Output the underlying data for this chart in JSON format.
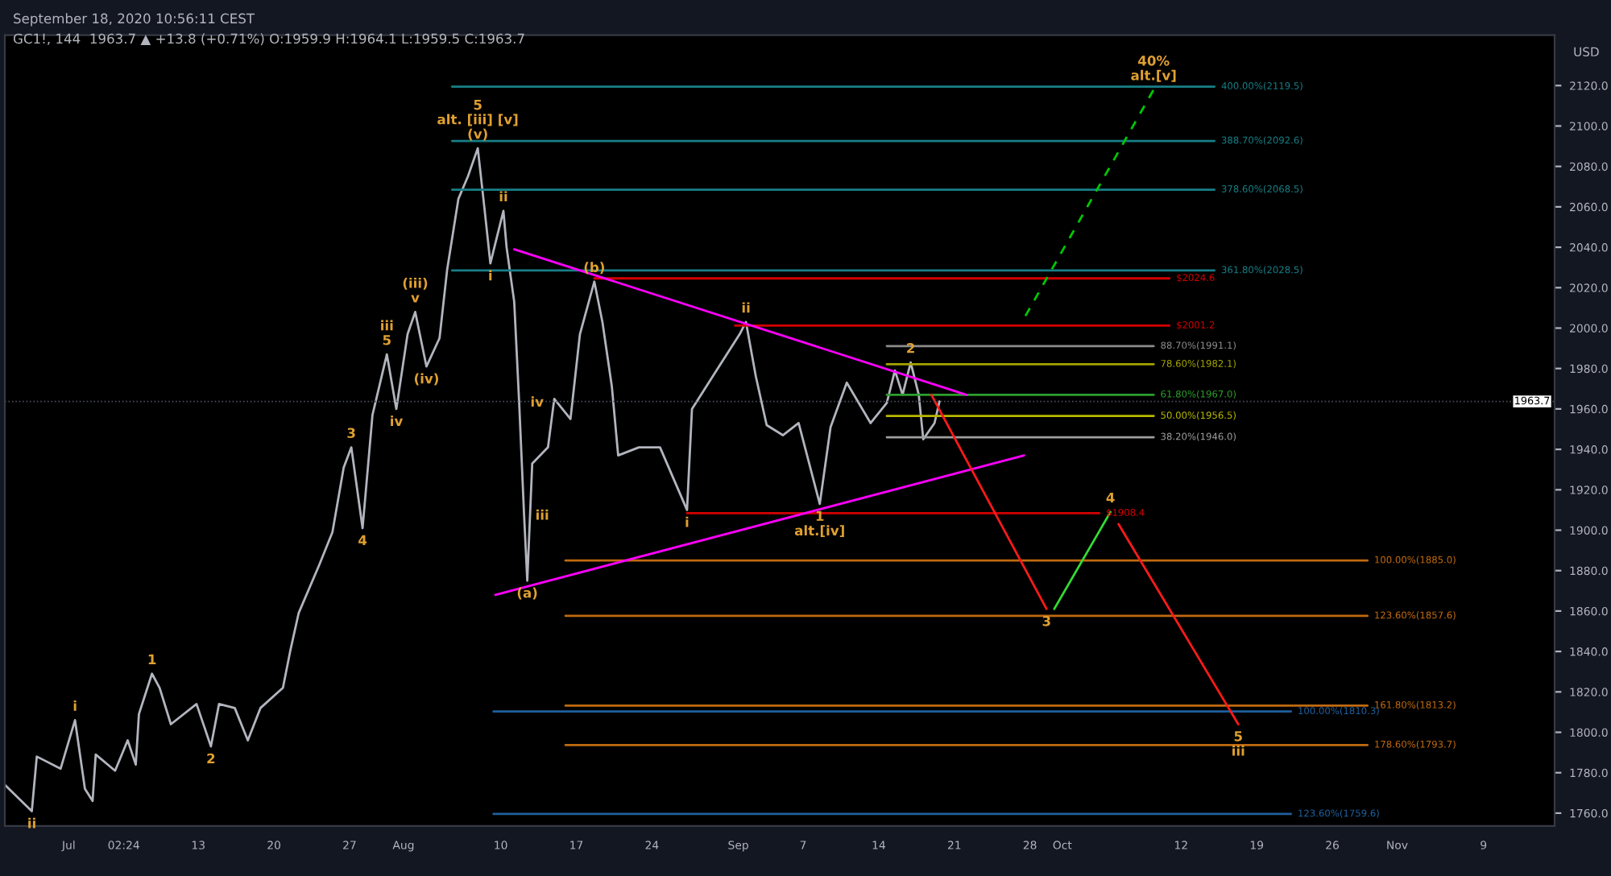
{
  "chart_data": {
    "type": "line",
    "title": "September 18, 2020 10:56:11 CEST",
    "subtitle": "GC1!, 144  1963.7 ▲ +13.8 (+0.71%) O:1959.9 H:1964.1 L:1959.5 C:1963.7",
    "ylabel": "USD",
    "xlim": [
      "2020-06-25T02:00",
      "2020-11-15T14:00"
    ],
    "xticks": [
      {
        "value": "2020-07-01",
        "label": "Jul"
      },
      {
        "value": "2020-07-06T02:24",
        "label": "02:24"
      },
      {
        "value": "2020-07-13",
        "label": "13"
      },
      {
        "value": "2020-07-20",
        "label": "20"
      },
      {
        "value": "2020-07-27",
        "label": "27"
      },
      {
        "value": "2020-08-01",
        "label": "Aug"
      },
      {
        "value": "2020-08-10",
        "label": "10"
      },
      {
        "value": "2020-08-17",
        "label": "17"
      },
      {
        "value": "2020-08-24",
        "label": "24"
      },
      {
        "value": "2020-09-01",
        "label": "Sep"
      },
      {
        "value": "2020-09-07",
        "label": "7"
      },
      {
        "value": "2020-09-14",
        "label": "14"
      },
      {
        "value": "2020-09-21",
        "label": "21"
      },
      {
        "value": "2020-09-28",
        "label": "28"
      },
      {
        "value": "2020-10-01",
        "label": "Oct"
      },
      {
        "value": "2020-10-12",
        "label": "12"
      },
      {
        "value": "2020-10-19",
        "label": "19"
      },
      {
        "value": "2020-10-26",
        "label": "26"
      },
      {
        "value": "2020-11-01",
        "label": "Nov"
      },
      {
        "value": "2020-11-09",
        "label": "9"
      }
    ],
    "ylim": [
      1753.6,
      2145
    ],
    "yticks": [
      {
        "value": 1760,
        "label": "1760.0"
      },
      {
        "value": 1780,
        "label": "1780.0"
      },
      {
        "value": 1800,
        "label": "1800.0"
      },
      {
        "value": 1820,
        "label": "1820.0"
      },
      {
        "value": 1840,
        "label": "1840.0"
      },
      {
        "value": 1860,
        "label": "1860.0"
      },
      {
        "value": 1880,
        "label": "1880.0"
      },
      {
        "value": 1900,
        "label": "1900.0"
      },
      {
        "value": 1920,
        "label": "1920.0"
      },
      {
        "value": 1940,
        "label": "1940.0"
      },
      {
        "value": 1960,
        "label": "1960.0"
      },
      {
        "value": 1980,
        "label": "1980.0"
      },
      {
        "value": 2000,
        "label": "2000.0"
      },
      {
        "value": 2020,
        "label": "2020.0"
      },
      {
        "value": 2040,
        "label": "2040.0"
      },
      {
        "value": 2060,
        "label": "2060.0"
      },
      {
        "value": 2080,
        "label": "2080.0"
      },
      {
        "value": 2100,
        "label": "2100.0"
      },
      {
        "value": 2120,
        "label": "2120.0"
      }
    ],
    "ref_lines": [
      {
        "axis": "y",
        "value": 1963.7,
        "label": "1963.7",
        "color": "#4a4e5a"
      }
    ],
    "series": [
      {
        "color": "#b2b5be",
        "x": [
          "2020-06-25T02:00",
          "2020-06-27T14:00",
          "2020-06-28T01:00",
          "2020-06-30T06:00",
          "2020-07-01T14:00",
          "2020-07-02T12:00",
          "2020-07-03T05:00",
          "2020-07-03T12:00",
          "2020-07-05T07:00",
          "2020-07-06T11:00",
          "2020-07-07T05:00",
          "2020-07-07T12:00",
          "2020-07-08T17:00",
          "2020-07-09T10:00",
          "2020-07-10T11:00",
          "2020-07-12T20:00",
          "2020-07-14T04:00",
          "2020-07-14T22:00",
          "2020-07-16T09:00",
          "2020-07-17T14:00",
          "2020-07-18T18:00",
          "2020-07-20T20:00",
          "2020-07-21T13:00",
          "2020-07-22T07:00",
          "2020-07-24T05:00",
          "2020-07-25T10:00",
          "2020-07-26T11:00",
          "2020-07-27T04:00",
          "2020-07-28T05:00",
          "2020-07-29T03:00",
          "2020-07-30T11:00",
          "2020-07-31T08:00",
          "2020-08-01T09:00",
          "2020-08-02T02:00",
          "2020-08-03T03:00",
          "2020-08-04T08:00",
          "2020-08-05T01:00",
          "2020-08-06T02:00",
          "2020-08-06T23:00",
          "2020-08-07T21:00",
          "2020-08-08T11:00",
          "2020-08-09T01:00",
          "2020-08-10T06:00",
          "2020-08-10T13:00",
          "2020-08-11T06:00",
          "2020-08-11T17:00",
          "2020-08-12T04:00",
          "2020-08-12T11:00",
          "2020-08-12T22:00",
          "2020-08-14T09:00",
          "2020-08-14T23:00",
          "2020-08-16T11:00",
          "2020-08-17T08:00",
          "2020-08-18T16:00",
          "2020-08-19T10:00",
          "2020-08-20T07:00",
          "2020-08-20T21:00",
          "2020-08-22T19:00",
          "2020-08-24T18:00",
          "2020-08-27T06:00",
          "2020-08-27T17:00",
          "2020-08-30T05:00",
          "2020-09-01T03:00",
          "2020-09-01T17:00",
          "2020-09-02T15:00",
          "2020-09-03T15:00",
          "2020-09-05T03:00",
          "2020-09-06T14:00",
          "2020-09-08T13:00",
          "2020-09-09T13:00",
          "2020-09-11T01:00",
          "2020-09-13T06:00",
          "2020-09-14T18:00",
          "2020-09-15T12:00",
          "2020-09-16T05:00",
          "2020-09-16T23:00",
          "2020-09-17T17:00",
          "2020-09-18T03:00",
          "2020-09-19T04:00",
          "2020-09-19T15:00"
        ],
        "values": [
          1774,
          1761,
          1788,
          1782,
          1806,
          1772,
          1766,
          1789,
          1781,
          1796,
          1784,
          1809,
          1829,
          1822,
          1804,
          1814,
          1793,
          1814,
          1812,
          1796,
          1812,
          1822,
          1841,
          1859,
          1883,
          1899,
          1931,
          1941,
          1901,
          1957,
          1987,
          1960,
          1997,
          2008,
          1981,
          1995,
          2029,
          2064,
          2075,
          2089,
          2061,
          2032,
          2058,
          2040,
          2013,
          1963,
          1907,
          1875,
          1933,
          1941,
          1965,
          1955,
          1997,
          2023,
          2003,
          1971,
          1937,
          1941,
          1941,
          1910,
          1960,
          1981,
          1997,
          2003,
          1976,
          1952,
          1947,
          1953,
          1913,
          1951,
          1973,
          1953,
          1963,
          1979,
          1967,
          1983,
          1967,
          1945,
          1953,
          1963.7
        ]
      },
      {
        "name": "400.00%(2119.5)",
        "color": "#177f86",
        "x": [
          "2020-08-05T12:00",
          "2020-10-15T02:00"
        ],
        "values": [
          2119.5,
          2119.5
        ]
      },
      {
        "name": "388.70%(2092.6)",
        "color": "#177f86",
        "x": [
          "2020-08-05T12:00",
          "2020-10-15T02:00"
        ],
        "values": [
          2092.6,
          2092.6
        ]
      },
      {
        "name": "378.60%(2068.5)",
        "color": "#177f86",
        "x": [
          "2020-08-05T12:00",
          "2020-10-15T02:00"
        ],
        "values": [
          2068.5,
          2068.5
        ]
      },
      {
        "name": "361.80%(2028.5)",
        "color": "#177f86",
        "x": [
          "2020-08-05T12:00",
          "2020-10-15T02:00"
        ],
        "values": [
          2028.5,
          2028.5
        ]
      },
      {
        "name": "$2024.6",
        "color": "#d50000",
        "x": [
          "2020-08-18T16:00",
          "2020-10-10T22:00"
        ],
        "values": [
          2024.6,
          2024.6
        ]
      },
      {
        "name": "$2001.2",
        "color": "#d50000",
        "x": [
          "2020-08-31T17:00",
          "2020-10-10T22:00"
        ],
        "values": [
          2001.2,
          2001.2
        ]
      },
      {
        "name": "$1908.4",
        "color": "#d50000",
        "x": [
          "2020-08-27T06:00",
          "2020-10-04T10:00"
        ],
        "values": [
          1908.4,
          1908.4
        ]
      },
      {
        "name": "88.70%(1991.1)",
        "color": "#8c8c8c",
        "x": [
          "2020-09-14T18:00",
          "2020-10-09T11:00"
        ],
        "values": [
          1991.1,
          1991.1
        ]
      },
      {
        "name": "78.60%(1982.1)",
        "color": "#a3a300",
        "x": [
          "2020-09-14T18:00",
          "2020-10-09T11:00"
        ],
        "values": [
          1982.1,
          1982.1
        ]
      },
      {
        "name": "61.80%(1967.0)",
        "color": "#2e9e2e",
        "x": [
          "2020-09-14T18:00",
          "2020-10-09T11:00"
        ],
        "values": [
          1967.0,
          1967.0
        ]
      },
      {
        "name": "50.00%(1956.5)",
        "color": "#b8b800",
        "x": [
          "2020-09-14T18:00",
          "2020-10-09T11:00"
        ],
        "values": [
          1956.5,
          1956.5
        ]
      },
      {
        "name": "38.20%(1946.0)",
        "color": "#9e9e9e",
        "x": [
          "2020-09-14T18:00",
          "2020-10-09T11:00"
        ],
        "values": [
          1946.0,
          1946.0
        ]
      },
      {
        "name": "100.00%(1885.0)",
        "color": "#c06a10",
        "x": [
          "2020-08-16T00:00",
          "2020-10-29T06:00"
        ],
        "values": [
          1885.0,
          1885.0
        ]
      },
      {
        "name": "123.60%(1857.6)",
        "color": "#c06a10",
        "x": [
          "2020-08-16T00:00",
          "2020-10-29T06:00"
        ],
        "values": [
          1857.6,
          1857.6
        ]
      },
      {
        "name": "161.80%(1813.2)",
        "color": "#c06a10",
        "x": [
          "2020-08-16T00:00",
          "2020-10-29T06:00"
        ],
        "values": [
          1813.2,
          1813.2
        ]
      },
      {
        "name": "178.60%(1793.7)",
        "color": "#c06a10",
        "x": [
          "2020-08-16T00:00",
          "2020-10-29T06:00"
        ],
        "values": [
          1793.7,
          1793.7
        ]
      },
      {
        "name": "100.00%(1810.3)",
        "color": "#1e5f9c",
        "x": [
          "2020-08-09T08:00",
          "2020-10-22T04:00"
        ],
        "values": [
          1810.3,
          1810.3
        ]
      },
      {
        "name": "123.60%(1759.6)",
        "color": "#1e5f9c",
        "x": [
          "2020-08-09T08:00",
          "2020-10-22T04:00"
        ],
        "values": [
          1759.6,
          1759.6
        ]
      },
      {
        "color": "#ff00ff",
        "x": [
          "2020-08-11T06:00",
          "2020-09-22T03:00"
        ],
        "values": [
          2039,
          1967
        ]
      },
      {
        "color": "#ff00ff",
        "x": [
          "2020-08-09T12:00",
          "2020-09-27T11:00"
        ],
        "values": [
          1868,
          1937
        ]
      },
      {
        "color": "#ff1a1a",
        "x": [
          "2020-09-18T21:00",
          "2020-09-29T13:00"
        ],
        "values": [
          1967,
          1861
        ]
      },
      {
        "color": "#33dd33",
        "x": [
          "2020-09-30T06:00",
          "2020-10-05T11:00"
        ],
        "values": [
          1861,
          1909
        ]
      },
      {
        "color": "#ff1a1a",
        "x": [
          "2020-10-06T05:00",
          "2020-10-17T07:00"
        ],
        "values": [
          1903,
          1804
        ]
      },
      {
        "color": "#00c800",
        "line_style": "dashed",
        "x": [
          "2020-09-27T14:00",
          "2020-10-09T11:00"
        ],
        "values": [
          2006,
          2118
        ]
      }
    ],
    "annotations": [
      {
        "text": "(v)",
        "x": "2020-08-07T21:00",
        "y": 2089
      },
      {
        "text": "alt. [iii] [v]",
        "x": "2020-08-07T21:00",
        "y": 2089
      },
      {
        "text": "5",
        "x": "2020-08-07T21:00",
        "y": 2089
      },
      {
        "text": "ii",
        "x": "2020-08-10T06:00",
        "y": 2058
      },
      {
        "text": "i",
        "x": "2020-08-09T01:00",
        "y": 2032
      },
      {
        "text": "(b)",
        "x": "2020-08-18T16:00",
        "y": 2023
      },
      {
        "text": "ii",
        "x": "2020-09-01T17:00",
        "y": 2003
      },
      {
        "text": "v",
        "x": "2020-08-02T02:00",
        "y": 2008
      },
      {
        "text": "(iii)",
        "x": "2020-08-02T02:00",
        "y": 2008
      },
      {
        "text": "5",
        "x": "2020-07-30T11:00",
        "y": 1987
      },
      {
        "text": "iii",
        "x": "2020-07-30T11:00",
        "y": 1987
      },
      {
        "text": "3",
        "x": "2020-07-27T04:00",
        "y": 1941
      },
      {
        "text": "(iv)",
        "x": "2020-08-03T03:00",
        "y": 1981
      },
      {
        "text": "iv",
        "x": "2020-07-31T08:00",
        "y": 1960
      },
      {
        "text": "iv",
        "x": "2020-08-11T17:00",
        "y": 1963
      },
      {
        "text": "iii",
        "x": "2020-08-12T04:00",
        "y": 1907
      },
      {
        "text": "(a)",
        "x": "2020-08-12T11:00",
        "y": 1875
      },
      {
        "text": "i",
        "x": "2020-08-27T06:00",
        "y": 1910
      },
      {
        "text": "1",
        "x": "2020-09-08T13:00",
        "y": 1913
      },
      {
        "text": "alt.[iv]",
        "x": "2020-09-08T13:00",
        "y": 1913
      },
      {
        "text": "2",
        "x": "2020-09-16T23:00",
        "y": 1983
      },
      {
        "text": "4",
        "x": "2020-07-28T05:00",
        "y": 1901
      },
      {
        "text": "1",
        "x": "2020-07-08T17:00",
        "y": 1829
      },
      {
        "text": "i",
        "x": "2020-07-01T14:00",
        "y": 1806
      },
      {
        "text": "ii",
        "x": "2020-06-27T14:00",
        "y": 1761
      },
      {
        "text": "2",
        "x": "2020-07-14T04:00",
        "y": 1793
      },
      {
        "text": "3",
        "x": "2020-09-29T13:00",
        "y": 1861
      },
      {
        "text": "4",
        "x": "2020-10-05T11:00",
        "y": 1909
      },
      {
        "text": "5",
        "x": "2020-10-17T07:00",
        "y": 1804
      },
      {
        "text": "iii",
        "x": "2020-10-17T07:00",
        "y": 1804
      },
      {
        "text": "alt.[v]",
        "x": "2020-10-09T11:00",
        "y": 2118
      },
      {
        "text": "40%",
        "x": "2020-10-09T11:00",
        "y": 2118
      }
    ]
  }
}
